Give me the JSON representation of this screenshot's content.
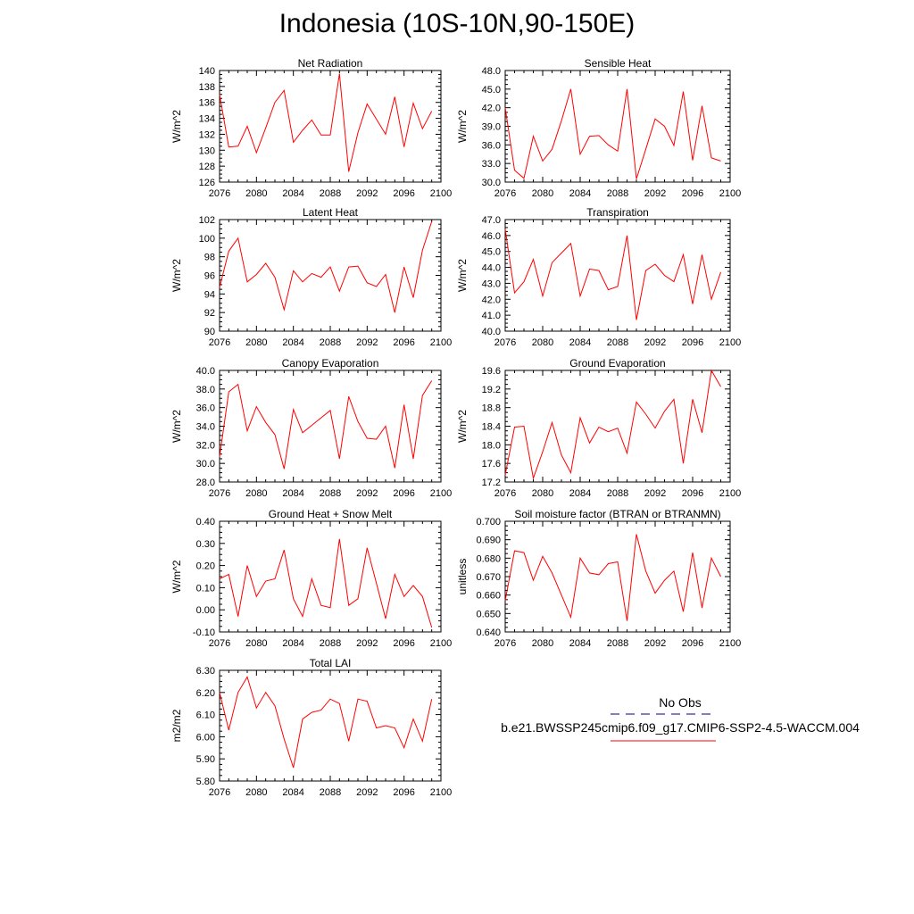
{
  "title": "Indonesia (10S-10N,90-150E)",
  "colors": {
    "model_line": "#ff0000",
    "obs_line": "#000080",
    "axis": "#000000"
  },
  "legend": {
    "obs_label": "No Obs",
    "model_label": "b.e21.BWSSP245cmip6.f09_g17.CMIP6-SSP2-4.5-WACCM.004"
  },
  "chart_data": [
    {
      "type": "line",
      "title": "Net Radiation",
      "ylabel": "W/m^2",
      "xlim": [
        2076,
        2100
      ],
      "ylim": [
        126,
        140
      ],
      "xticks": [
        "2076",
        "2080",
        "2084",
        "2088",
        "2092",
        "2096",
        "2100"
      ],
      "yticks": [
        "126",
        "128",
        "130",
        "132",
        "134",
        "136",
        "138",
        "140"
      ],
      "x": [
        2076,
        2077,
        2078,
        2079,
        2080,
        2081,
        2082,
        2083,
        2084,
        2085,
        2086,
        2087,
        2088,
        2089,
        2090,
        2091,
        2092,
        2093,
        2094,
        2095,
        2096,
        2097,
        2098,
        2099
      ],
      "series": [
        {
          "values": [
            137.0,
            130.4,
            130.5,
            133.0,
            129.7,
            132.8,
            136.0,
            137.5,
            131.0,
            132.5,
            133.8,
            131.9,
            131.9,
            139.6,
            127.3,
            132.2,
            135.8,
            133.9,
            132.0,
            136.7,
            130.4,
            135.9,
            132.7,
            134.9
          ]
        }
      ]
    },
    {
      "type": "line",
      "title": "Sensible Heat",
      "ylabel": "W/m^2",
      "xlim": [
        2076,
        2100
      ],
      "ylim": [
        30,
        48
      ],
      "xticks": [
        "2076",
        "2080",
        "2084",
        "2088",
        "2092",
        "2096",
        "2100"
      ],
      "yticks": [
        "30.0",
        "33.0",
        "36.0",
        "39.0",
        "42.0",
        "45.0",
        "48.0"
      ],
      "x": [
        2076,
        2077,
        2078,
        2079,
        2080,
        2081,
        2082,
        2083,
        2084,
        2085,
        2086,
        2087,
        2088,
        2089,
        2090,
        2091,
        2092,
        2093,
        2094,
        2095,
        2096,
        2097,
        2098,
        2099
      ],
      "series": [
        {
          "values": [
            42.0,
            31.9,
            30.6,
            37.4,
            33.4,
            35.3,
            39.9,
            45.0,
            34.5,
            37.4,
            37.5,
            36.0,
            35.0,
            45.0,
            30.5,
            35.3,
            40.2,
            39.0,
            35.9,
            44.6,
            33.5,
            42.3,
            33.9,
            33.4
          ]
        }
      ]
    },
    {
      "type": "line",
      "title": "Latent Heat",
      "ylabel": "W/m^2",
      "xlim": [
        2076,
        2100
      ],
      "ylim": [
        90,
        102
      ],
      "xticks": [
        "2076",
        "2080",
        "2084",
        "2088",
        "2092",
        "2096",
        "2100"
      ],
      "yticks": [
        "90",
        "92",
        "94",
        "96",
        "98",
        "100",
        "102"
      ],
      "x": [
        2076,
        2077,
        2078,
        2079,
        2080,
        2081,
        2082,
        2083,
        2084,
        2085,
        2086,
        2087,
        2088,
        2089,
        2090,
        2091,
        2092,
        2093,
        2094,
        2095,
        2096,
        2097,
        2098,
        2099
      ],
      "series": [
        {
          "values": [
            94.7,
            98.6,
            100.0,
            95.3,
            96.1,
            97.3,
            95.8,
            92.3,
            96.5,
            95.3,
            96.2,
            95.8,
            96.9,
            94.3,
            96.9,
            97.0,
            95.2,
            94.8,
            96.1,
            92.0,
            96.9,
            93.6,
            98.7,
            101.8
          ]
        }
      ]
    },
    {
      "type": "line",
      "title": "Transpiration",
      "ylabel": "W/m^2",
      "xlim": [
        2076,
        2100
      ],
      "ylim": [
        40,
        47
      ],
      "xticks": [
        "2076",
        "2080",
        "2084",
        "2088",
        "2092",
        "2096",
        "2100"
      ],
      "yticks": [
        "40.0",
        "41.0",
        "42.0",
        "43.0",
        "44.0",
        "45.0",
        "46.0",
        "47.0"
      ],
      "x": [
        2076,
        2077,
        2078,
        2079,
        2080,
        2081,
        2082,
        2083,
        2084,
        2085,
        2086,
        2087,
        2088,
        2089,
        2090,
        2091,
        2092,
        2093,
        2094,
        2095,
        2096,
        2097,
        2098,
        2099
      ],
      "series": [
        {
          "values": [
            46.4,
            42.4,
            43.1,
            44.5,
            42.2,
            44.3,
            44.9,
            45.5,
            42.2,
            43.9,
            43.8,
            42.6,
            42.8,
            46.0,
            40.7,
            43.8,
            44.2,
            43.5,
            43.1,
            44.8,
            41.7,
            44.8,
            42.0,
            43.7
          ]
        }
      ]
    },
    {
      "type": "line",
      "title": "Canopy Evaporation",
      "ylabel": "W/m^2",
      "xlim": [
        2076,
        2100
      ],
      "ylim": [
        28,
        40
      ],
      "xticks": [
        "2076",
        "2080",
        "2084",
        "2088",
        "2092",
        "2096",
        "2100"
      ],
      "yticks": [
        "28.0",
        "30.0",
        "32.0",
        "34.0",
        "36.0",
        "38.0",
        "40.0"
      ],
      "x": [
        2076,
        2077,
        2078,
        2079,
        2080,
        2081,
        2082,
        2083,
        2084,
        2085,
        2086,
        2087,
        2088,
        2089,
        2090,
        2091,
        2092,
        2093,
        2094,
        2095,
        2096,
        2097,
        2098,
        2099
      ],
      "series": [
        {
          "values": [
            30.7,
            37.7,
            38.5,
            33.5,
            36.1,
            34.4,
            33.1,
            29.4,
            35.8,
            33.3,
            34.1,
            34.9,
            35.7,
            30.5,
            37.2,
            34.5,
            32.7,
            32.6,
            34.0,
            29.5,
            36.3,
            30.5,
            37.3,
            38.9
          ]
        }
      ]
    },
    {
      "type": "line",
      "title": "Ground Evaporation",
      "ylabel": "W/m^2",
      "xlim": [
        2076,
        2100
      ],
      "ylim": [
        17.2,
        19.6
      ],
      "xticks": [
        "2076",
        "2080",
        "2084",
        "2088",
        "2092",
        "2096",
        "2100"
      ],
      "yticks": [
        "17.2",
        "17.6",
        "18.0",
        "18.4",
        "18.8",
        "19.2",
        "19.6"
      ],
      "x": [
        2076,
        2077,
        2078,
        2079,
        2080,
        2081,
        2082,
        2083,
        2084,
        2085,
        2086,
        2087,
        2088,
        2089,
        2090,
        2091,
        2092,
        2093,
        2094,
        2095,
        2096,
        2097,
        2098,
        2099
      ],
      "series": [
        {
          "values": [
            17.35,
            18.38,
            18.4,
            17.28,
            17.85,
            18.48,
            17.78,
            17.4,
            18.58,
            18.04,
            18.38,
            18.28,
            18.36,
            17.82,
            18.92,
            18.66,
            18.36,
            18.72,
            18.98,
            17.6,
            18.98,
            18.26,
            19.6,
            19.25
          ]
        }
      ]
    },
    {
      "type": "line",
      "title": "Ground Heat + Snow Melt",
      "ylabel": "W/m^2",
      "xlim": [
        2076,
        2100
      ],
      "ylim": [
        -0.1,
        0.4
      ],
      "xticks": [
        "2076",
        "2080",
        "2084",
        "2088",
        "2092",
        "2096",
        "2100"
      ],
      "yticks": [
        "-0.10",
        "0.00",
        "0.10",
        "0.20",
        "0.30",
        "0.40"
      ],
      "x": [
        2076,
        2077,
        2078,
        2079,
        2080,
        2081,
        2082,
        2083,
        2084,
        2085,
        2086,
        2087,
        2088,
        2089,
        2090,
        2091,
        2092,
        2093,
        2094,
        2095,
        2096,
        2097,
        2098,
        2099
      ],
      "series": [
        {
          "values": [
            0.14,
            0.16,
            -0.03,
            0.2,
            0.06,
            0.13,
            0.14,
            0.27,
            0.05,
            -0.03,
            0.14,
            0.02,
            0.01,
            0.32,
            0.02,
            0.05,
            0.28,
            0.12,
            -0.04,
            0.16,
            0.06,
            0.11,
            0.06,
            -0.08
          ]
        }
      ]
    },
    {
      "type": "line",
      "title": "Soil moisture factor (BTRAN or BTRANMN)",
      "ylabel": "unitless",
      "xlim": [
        2076,
        2100
      ],
      "ylim": [
        0.64,
        0.7
      ],
      "xticks": [
        "2076",
        "2080",
        "2084",
        "2088",
        "2092",
        "2096",
        "2100"
      ],
      "yticks": [
        "0.640",
        "0.650",
        "0.660",
        "0.670",
        "0.680",
        "0.690",
        "0.700"
      ],
      "x": [
        2076,
        2077,
        2078,
        2079,
        2080,
        2081,
        2082,
        2083,
        2084,
        2085,
        2086,
        2087,
        2088,
        2089,
        2090,
        2091,
        2092,
        2093,
        2094,
        2095,
        2096,
        2097,
        2098,
        2099
      ],
      "series": [
        {
          "values": [
            0.657,
            0.684,
            0.683,
            0.668,
            0.681,
            0.672,
            0.66,
            0.648,
            0.68,
            0.672,
            0.671,
            0.677,
            0.678,
            0.646,
            0.693,
            0.673,
            0.661,
            0.668,
            0.673,
            0.651,
            0.683,
            0.653,
            0.68,
            0.67
          ]
        }
      ]
    },
    {
      "type": "line",
      "title": "Total LAI",
      "ylabel": "m2/m2",
      "xlim": [
        2076,
        2100
      ],
      "ylim": [
        5.8,
        6.3
      ],
      "xticks": [
        "2076",
        "2080",
        "2084",
        "2088",
        "2092",
        "2096",
        "2100"
      ],
      "yticks": [
        "5.80",
        "5.90",
        "6.00",
        "6.10",
        "6.20",
        "6.30"
      ],
      "x": [
        2076,
        2077,
        2078,
        2079,
        2080,
        2081,
        2082,
        2083,
        2084,
        2085,
        2086,
        2087,
        2088,
        2089,
        2090,
        2091,
        2092,
        2093,
        2094,
        2095,
        2096,
        2097,
        2098,
        2099
      ],
      "series": [
        {
          "values": [
            6.2,
            6.03,
            6.2,
            6.27,
            6.13,
            6.2,
            6.14,
            5.99,
            5.86,
            6.08,
            6.11,
            6.12,
            6.17,
            6.15,
            5.98,
            6.17,
            6.16,
            6.04,
            6.05,
            6.04,
            5.95,
            6.08,
            5.98,
            6.17
          ]
        }
      ]
    }
  ]
}
